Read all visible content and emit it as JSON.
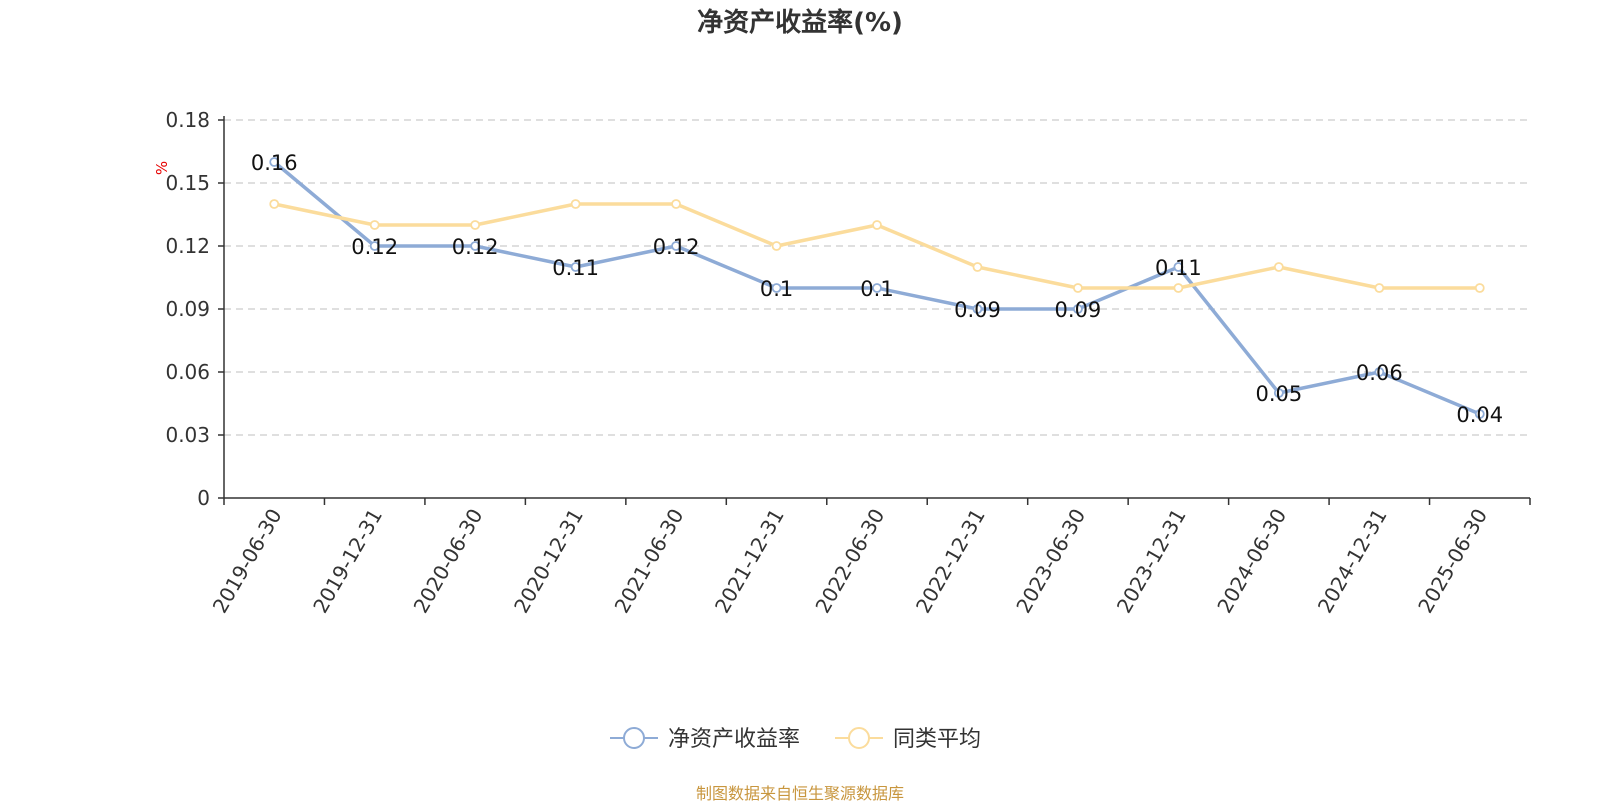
{
  "title": "净资产收益率(%)",
  "source": "制图数据来自恒生聚源数据库",
  "colors": {
    "series1": "#8eabd6",
    "series2": "#fbdc9c"
  },
  "chart_data": {
    "type": "line",
    "title": "净资产收益率(%)",
    "xlabel": "",
    "ylabel": "%",
    "x": [
      "2019-06-30",
      "2019-12-31",
      "2020-06-30",
      "2020-12-31",
      "2021-06-30",
      "2021-12-31",
      "2022-06-30",
      "2022-12-31",
      "2023-06-30",
      "2023-12-31",
      "2024-06-30",
      "2024-12-31",
      "2025-06-30"
    ],
    "ylim": [
      0,
      0.18
    ],
    "yticks": [
      "0",
      "0.03",
      "0.06",
      "0.09",
      "0.12",
      "0.15",
      "0.18"
    ],
    "grid": true,
    "legend_position": "bottom-center",
    "series": [
      {
        "name": "净资产收益率",
        "values": [
          0.16,
          0.12,
          0.12,
          0.11,
          0.12,
          0.1,
          0.1,
          0.09,
          0.09,
          0.11,
          0.05,
          0.06,
          0.04
        ],
        "labels": [
          "0.16",
          "0.12",
          "0.12",
          "0.11",
          "0.12",
          "0.1",
          "0.1",
          "0.09",
          "0.09",
          "0.11",
          "0.05",
          "0.06",
          "0.04"
        ]
      },
      {
        "name": "同类平均",
        "values": [
          0.14,
          0.13,
          0.13,
          0.14,
          0.14,
          0.12,
          0.13,
          0.11,
          0.1,
          0.1,
          0.11,
          0.1,
          0.1
        ]
      }
    ]
  }
}
